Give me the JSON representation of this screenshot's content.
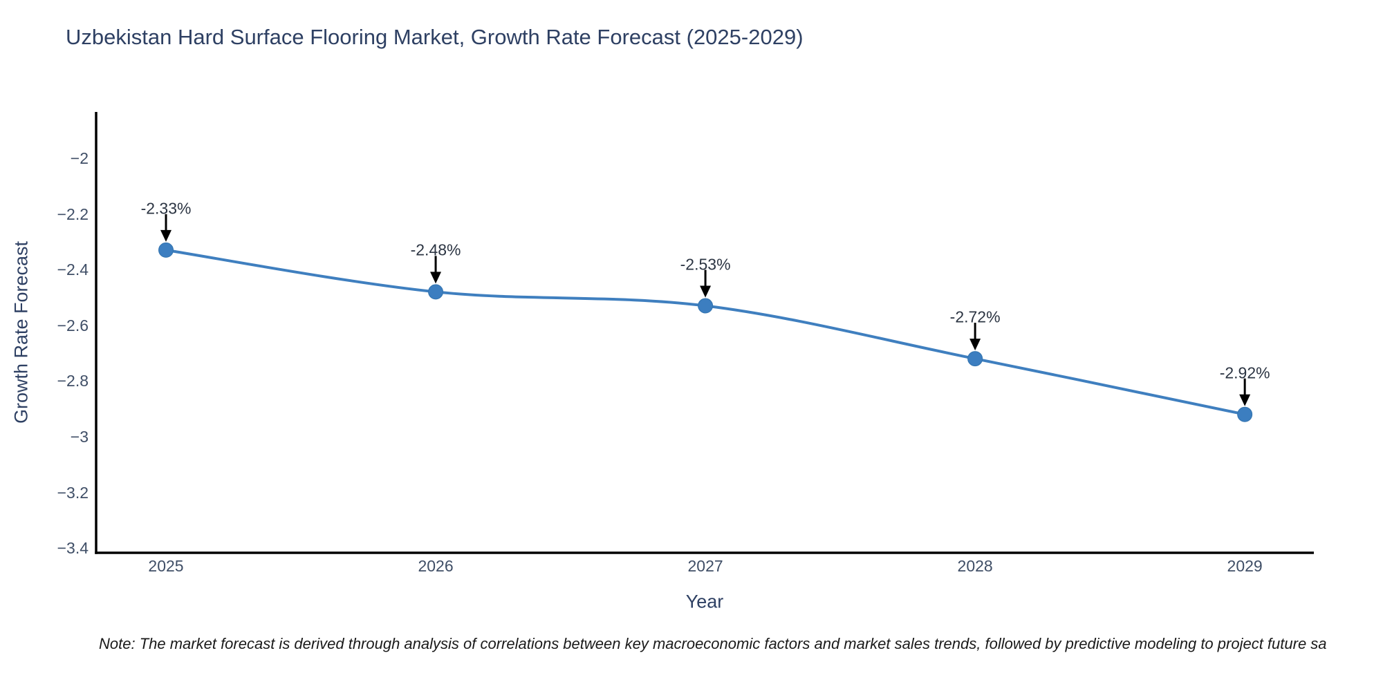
{
  "title": "Uzbekistan Hard Surface Flooring Market, Growth Rate Forecast (2025-2029)",
  "note": "Note: The market forecast is derived through analysis of correlations between key macroeconomic factors and market sales trends, followed by predictive modeling to project future sa",
  "chart_data": {
    "type": "line",
    "title": "Uzbekistan Hard Surface Flooring Market, Growth Rate Forecast (2025-2029)",
    "xlabel": "Year",
    "ylabel": "Growth Rate Forecast",
    "x": [
      2025,
      2026,
      2027,
      2028,
      2029
    ],
    "values": [
      -2.33,
      -2.48,
      -2.53,
      -2.72,
      -2.92
    ],
    "point_labels": [
      "-2.33%",
      "-2.48%",
      "-2.53%",
      "-2.72%",
      "-2.92%"
    ],
    "xtick_values": [
      2025,
      2026,
      2027,
      2028,
      2029
    ],
    "xtick_labels": [
      "2025",
      "2026",
      "2027",
      "2028",
      "2029"
    ],
    "ytick_values": [
      -2,
      -2.2,
      -2.4,
      -2.6,
      -2.8,
      -3,
      -3.2,
      -3.4
    ],
    "ytick_labels": [
      "−2",
      "−2.2",
      "−2.4",
      "−2.6",
      "−2.8",
      "−3",
      "−3.2",
      "−3.4"
    ],
    "xlim": [
      2024.741,
      2029.256
    ],
    "ylim": [
      -3.417,
      -1.834
    ],
    "line_shape": "spline",
    "grid": false,
    "legend": false,
    "colors": {
      "line": "#3f7fbf",
      "marker": "#3c7ec0",
      "marker_edge": "#3273ae",
      "axis": "#000000",
      "arrow": "#000000",
      "title_text": "#2e4063",
      "tick_text": "#3f4e66",
      "annotation_text": "#2b3442"
    }
  }
}
